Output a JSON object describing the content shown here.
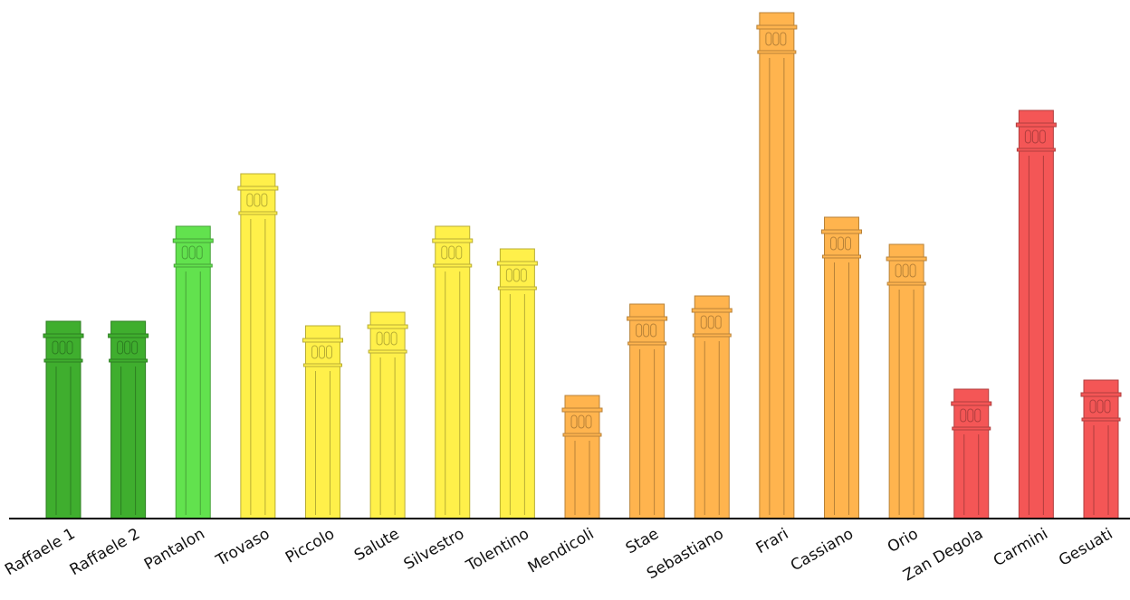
{
  "chart_data": {
    "type": "bar",
    "categories": [
      "Raffaele 1",
      "Raffaele 2",
      "Pantalon",
      "Trovaso",
      "Piccolo",
      "Salute",
      "Silvestro",
      "Tolentino",
      "Mendicoli",
      "Stae",
      "Sebastiano",
      "Frari",
      "Cassiano",
      "Orio",
      "Zan Degola",
      "Carmini",
      "Gesuati"
    ],
    "values": [
      218,
      218,
      323,
      381,
      213,
      228,
      323,
      298,
      136,
      237,
      246,
      559,
      333,
      303,
      143,
      451,
      153
    ],
    "colors": [
      "#3fae2e",
      "#3fae2e",
      "#62e24e",
      "#fff04a",
      "#fff04a",
      "#fff04a",
      "#fff04a",
      "#fff04a",
      "#ffb44e",
      "#ffb44e",
      "#ffb44e",
      "#ffb44e",
      "#ffb44e",
      "#ffb44e",
      "#f45656",
      "#f45656",
      "#f45656"
    ]
  }
}
